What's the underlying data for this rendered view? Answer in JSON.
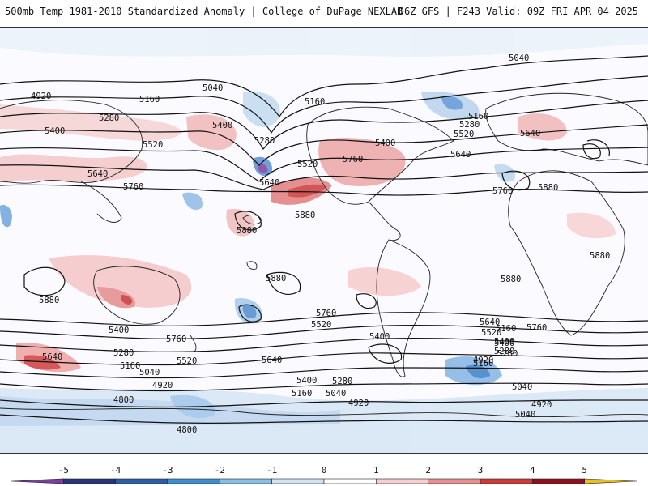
{
  "header": {
    "title": "500mb Temp 1981-2010 Standardized Anomaly | College of DuPage NEXLAB",
    "run_info": "06Z GFS | F243 Valid: 09Z FRI APR 04 2025"
  },
  "colorbar": {
    "ticks": [
      "-5",
      "-4",
      "-3",
      "-2",
      "-1",
      "0",
      "1",
      "2",
      "3",
      "4",
      "5"
    ],
    "colors": [
      "#7a3fa0",
      "#26357a",
      "#2d5fa8",
      "#3f8fd0",
      "#8bbde6",
      "#cfe3f3",
      "#ffffff",
      "#f6cfcf",
      "#e98f8f",
      "#cf3b3b",
      "#8e1020",
      "#e9c020"
    ]
  },
  "contour_labels": [
    "5040",
    "4920",
    "5040",
    "5160",
    "5160",
    "5280",
    "5280",
    "5280",
    "5160",
    "5400",
    "5400",
    "5400",
    "5520",
    "5520",
    "5520",
    "5640",
    "5640",
    "5760",
    "5760",
    "5640",
    "5640",
    "5760",
    "5880",
    "5880",
    "5880",
    "5880",
    "5880",
    "5880",
    "5880",
    "5760",
    "5520",
    "5400",
    "5400",
    "5280",
    "5160",
    "5040",
    "4920",
    "4920",
    "4800",
    "4800",
    "5640",
    "5640",
    "5760",
    "5520",
    "5400",
    "5280",
    "5160",
    "5040",
    "4920",
    "5400",
    "5280",
    "5160",
    "5040",
    "5640",
    "5520",
    "5400",
    "5280",
    "5160",
    "4920",
    "5040",
    "5760"
  ],
  "anomaly_colors": {
    "warm_light": "#f3c4c4",
    "warm_mid": "#e88c8c",
    "warm_strong": "#d13d3d",
    "cool_light": "#c8dcf2",
    "cool_mid": "#7fb2e3",
    "cool_strong": "#3a7fc8",
    "cool_extreme": "#7a3fa0"
  }
}
